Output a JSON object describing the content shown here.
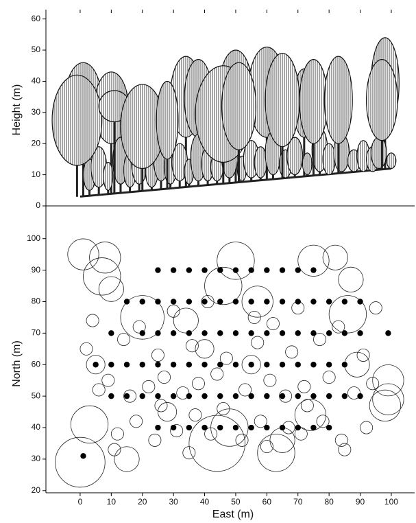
{
  "chart_data": [
    {
      "type": "profile",
      "y_label": "Height (m)",
      "x": [
        1,
        10,
        34,
        38,
        50,
        60,
        72,
        98,
        3,
        6,
        9,
        13,
        16,
        19,
        23,
        26,
        29,
        32,
        35,
        38,
        41,
        44,
        48,
        52,
        55,
        58,
        62,
        66,
        69,
        73,
        77,
        80,
        84,
        88,
        91,
        94,
        96,
        100,
        -1,
        11,
        20,
        28,
        46,
        51,
        65,
        75,
        83,
        97
      ],
      "values": [
        46,
        43,
        48,
        47,
        50,
        51,
        44,
        54,
        15,
        19,
        14,
        22,
        17,
        21,
        16,
        24,
        18,
        20,
        15,
        23,
        19,
        17,
        22,
        16,
        21,
        19,
        24,
        18,
        22,
        17,
        25,
        20,
        23,
        18,
        21,
        19,
        22,
        17,
        42,
        37,
        39,
        40,
        45,
        46,
        49,
        47,
        48,
        47
      ],
      "crown_base": [
        20,
        20,
        22,
        22,
        22,
        22,
        22,
        25,
        5,
        6,
        5,
        7,
        6,
        7,
        6,
        8,
        7,
        8,
        7,
        8,
        8,
        8,
        9,
        8,
        9,
        9,
        10,
        9,
        10,
        10,
        11,
        10,
        11,
        11,
        11,
        11,
        12,
        12,
        13,
        27,
        12,
        15,
        14,
        18,
        19,
        20,
        20,
        21
      ],
      "crown_width": [
        12,
        11,
        10,
        9,
        11,
        12,
        7,
        9,
        4,
        5,
        3,
        5,
        4,
        5,
        4,
        5,
        4,
        5,
        3,
        5,
        4,
        4,
        5,
        3,
        5,
        4,
        5,
        4,
        5,
        3,
        5,
        4,
        5,
        4,
        4,
        4,
        5,
        3,
        16,
        10,
        14,
        7,
        18,
        11,
        11,
        9,
        9,
        10
      ],
      "ground_x": [
        0,
        100
      ],
      "ground": [
        3,
        12
      ],
      "xlim": [
        -11,
        107.5
      ],
      "ylim": [
        0,
        63
      ],
      "yticks": [
        0,
        10,
        20,
        30,
        40,
        50,
        60
      ]
    },
    {
      "type": "crown-map",
      "x_label": "East (m)",
      "y_label": "North (m)",
      "points": {
        "x": [
          25,
          30,
          35,
          40,
          45,
          50,
          55,
          60,
          65,
          70,
          75,
          15,
          20,
          25,
          30,
          35,
          40,
          45,
          50,
          55,
          60,
          65,
          70,
          75,
          80,
          85,
          90,
          10,
          20,
          25,
          30,
          35,
          40,
          45,
          50,
          55,
          60,
          65,
          70,
          75,
          80,
          85,
          90,
          5,
          10,
          15,
          20,
          25,
          30,
          35,
          40,
          45,
          50,
          55,
          60,
          65,
          70,
          75,
          80,
          85,
          10,
          15,
          20,
          25,
          30,
          35,
          40,
          45,
          50,
          55,
          60,
          65,
          70,
          75,
          80,
          85,
          90,
          25,
          30,
          35,
          40,
          45,
          50,
          55,
          60,
          65,
          70,
          75,
          80,
          1,
          99
        ],
        "y": [
          90,
          90,
          90,
          90,
          90,
          90,
          90,
          90,
          90,
          90,
          90,
          80,
          80,
          80,
          80,
          80,
          80,
          80,
          80,
          80,
          80,
          80,
          80,
          80,
          80,
          80,
          80,
          70,
          70,
          70,
          70,
          70,
          70,
          70,
          70,
          70,
          70,
          70,
          70,
          70,
          70,
          70,
          70,
          60,
          60,
          60,
          60,
          60,
          60,
          60,
          60,
          60,
          60,
          60,
          60,
          60,
          60,
          60,
          60,
          60,
          50,
          50,
          50,
          50,
          50,
          50,
          50,
          50,
          50,
          50,
          50,
          50,
          50,
          50,
          50,
          50,
          50,
          40,
          40,
          40,
          40,
          40,
          40,
          40,
          40,
          40,
          40,
          40,
          40,
          31,
          70
        ]
      },
      "crowns": {
        "x": [
          0,
          3,
          1,
          8,
          7,
          10,
          50,
          46,
          57,
          75,
          82,
          87,
          20,
          34,
          44,
          48,
          63,
          65,
          74,
          86,
          99,
          99,
          98,
          89,
          5,
          15,
          28,
          55,
          40,
          12,
          18,
          24,
          31,
          37,
          42,
          52,
          58,
          67,
          71,
          78,
          84,
          92,
          6,
          9,
          16,
          22,
          27,
          33,
          38,
          44,
          53,
          61,
          66,
          72,
          80,
          88,
          94,
          2,
          14,
          25,
          36,
          47,
          57,
          68,
          77,
          91,
          4,
          19,
          30,
          41,
          56,
          62,
          70,
          83,
          95,
          11,
          35,
          60,
          85,
          26,
          46,
          73
        ],
        "y": [
          29,
          41,
          95,
          94,
          88,
          84,
          93,
          85,
          80,
          93,
          94,
          87,
          75,
          74,
          35,
          40,
          32,
          36,
          44,
          76,
          55,
          49,
          47,
          60,
          60,
          30,
          45,
          60,
          65,
          38,
          42,
          36,
          39,
          44,
          38,
          36,
          42,
          40,
          38,
          42,
          36,
          40,
          52,
          55,
          50,
          53,
          56,
          51,
          54,
          57,
          52,
          55,
          50,
          53,
          56,
          51,
          54,
          65,
          68,
          63,
          66,
          62,
          67,
          64,
          68,
          63,
          74,
          72,
          77,
          80,
          75,
          73,
          78,
          72,
          78,
          33,
          32,
          34,
          33,
          47,
          46,
          47
        ],
        "r": [
          8,
          6,
          5,
          5,
          6,
          4,
          6,
          6,
          5,
          5,
          4,
          4,
          7,
          4,
          9,
          6,
          6,
          4,
          5,
          6,
          5,
          5,
          5,
          4,
          3,
          4,
          3,
          3,
          3,
          2,
          2,
          2,
          2,
          2,
          2,
          2,
          2,
          2,
          2,
          2,
          2,
          2,
          2,
          2,
          2,
          2,
          2,
          2,
          2,
          2,
          2,
          2,
          2,
          2,
          2,
          2,
          2,
          2,
          2,
          2,
          2,
          2,
          2,
          2,
          2,
          2,
          2,
          2,
          2,
          2,
          2,
          2,
          2,
          2,
          2,
          2,
          2,
          2,
          2,
          2,
          2,
          2
        ]
      },
      "xlim": [
        -11,
        107.5
      ],
      "ylim": [
        19.3,
        110.4
      ],
      "xticks": [
        0,
        10,
        20,
        30,
        40,
        50,
        60,
        70,
        80,
        90,
        100
      ],
      "yticks": [
        20,
        30,
        40,
        50,
        60,
        70,
        80,
        90,
        100
      ]
    }
  ]
}
